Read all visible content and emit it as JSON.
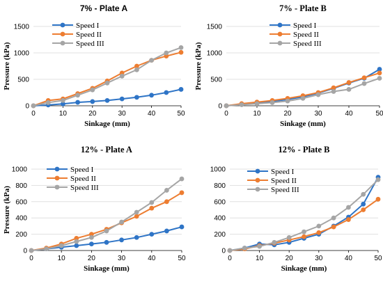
{
  "chart_data": [
    {
      "type": "line",
      "title": "7% - Plate A",
      "xlabel": "Sinkage (mm)",
      "ylabel": "Pressure (kPa)",
      "x": [
        0,
        5,
        10,
        15,
        20,
        25,
        30,
        35,
        40,
        45,
        50
      ],
      "xlim": [
        0,
        50
      ],
      "xticks": [
        0,
        10,
        20,
        30,
        40,
        50
      ],
      "ylim": [
        0,
        1500
      ],
      "yticks": [
        0,
        500,
        1000,
        1500
      ],
      "grid": true,
      "legend_position": "top-left",
      "series": [
        {
          "name": "Speed I",
          "color": "#2e74c6",
          "values": [
            0,
            15,
            35,
            65,
            80,
            100,
            130,
            160,
            200,
            250,
            310
          ]
        },
        {
          "name": "Speed II",
          "color": "#ed7d31",
          "values": [
            0,
            100,
            130,
            230,
            330,
            470,
            620,
            750,
            860,
            940,
            1010
          ]
        },
        {
          "name": "Speed III",
          "color": "#a5a5a5",
          "values": [
            0,
            60,
            100,
            200,
            300,
            430,
            560,
            680,
            860,
            1000,
            1100
          ]
        }
      ]
    },
    {
      "type": "line",
      "title": "7% - Plate B",
      "xlabel": "Sinkage (mm)",
      "ylabel": "Pressure (kPa)",
      "x": [
        0,
        5,
        10,
        15,
        20,
        25,
        30,
        35,
        40,
        45,
        50
      ],
      "xlim": [
        0,
        50
      ],
      "xticks": [
        0,
        10,
        20,
        30,
        40,
        50
      ],
      "ylim": [
        0,
        1500
      ],
      "yticks": [
        0,
        500,
        1000,
        1500
      ],
      "grid": true,
      "legend_position": "top-right",
      "series": [
        {
          "name": "Speed I",
          "color": "#2e74c6",
          "values": [
            0,
            30,
            60,
            80,
            120,
            170,
            240,
            330,
            430,
            520,
            690
          ]
        },
        {
          "name": "Speed II",
          "color": "#ed7d31",
          "values": [
            0,
            40,
            70,
            100,
            140,
            190,
            250,
            340,
            440,
            530,
            620
          ]
        },
        {
          "name": "Speed III",
          "color": "#a5a5a5",
          "values": [
            0,
            20,
            40,
            60,
            90,
            140,
            210,
            270,
            310,
            420,
            520
          ]
        }
      ]
    },
    {
      "type": "line",
      "title": "12% - Plate A",
      "xlabel": "Sinkage (mm)",
      "ylabel": "Pressure (kPa)",
      "x": [
        0,
        5,
        10,
        15,
        20,
        25,
        30,
        35,
        40,
        45,
        50
      ],
      "xlim": [
        0,
        50
      ],
      "xticks": [
        0,
        10,
        20,
        30,
        40,
        50
      ],
      "ylim": [
        0,
        1000
      ],
      "yticks": [
        0,
        200,
        400,
        600,
        800,
        1000
      ],
      "grid": true,
      "legend_position": "top-left",
      "series": [
        {
          "name": "Speed I",
          "color": "#2e74c6",
          "values": [
            0,
            20,
            40,
            60,
            80,
            100,
            130,
            160,
            200,
            240,
            290
          ]
        },
        {
          "name": "Speed II",
          "color": "#ed7d31",
          "values": [
            0,
            30,
            80,
            150,
            200,
            260,
            340,
            420,
            520,
            600,
            710
          ]
        },
        {
          "name": "Speed III",
          "color": "#a5a5a5",
          "values": [
            0,
            20,
            60,
            110,
            160,
            240,
            350,
            470,
            590,
            740,
            880
          ]
        }
      ]
    },
    {
      "type": "line",
      "title": "12% - Plate B",
      "xlabel": "Sinkage (mm)",
      "ylabel": "",
      "x": [
        0,
        5,
        10,
        15,
        20,
        25,
        30,
        35,
        40,
        45,
        50
      ],
      "xlim": [
        0,
        50
      ],
      "xticks": [
        0,
        10,
        20,
        30,
        40,
        50
      ],
      "ylim": [
        0,
        1000
      ],
      "yticks": [
        0,
        200,
        400,
        600,
        800,
        1000
      ],
      "grid": true,
      "legend_position": "top-left",
      "series": [
        {
          "name": "Speed I",
          "color": "#2e74c6",
          "values": [
            0,
            30,
            80,
            70,
            100,
            150,
            200,
            300,
            410,
            570,
            900
          ]
        },
        {
          "name": "Speed II",
          "color": "#ed7d31",
          "values": [
            0,
            20,
            60,
            90,
            130,
            170,
            220,
            290,
            380,
            500,
            630
          ]
        },
        {
          "name": "Speed III",
          "color": "#a5a5a5",
          "values": [
            0,
            30,
            50,
            100,
            160,
            230,
            300,
            400,
            530,
            690,
            870
          ]
        }
      ]
    }
  ]
}
